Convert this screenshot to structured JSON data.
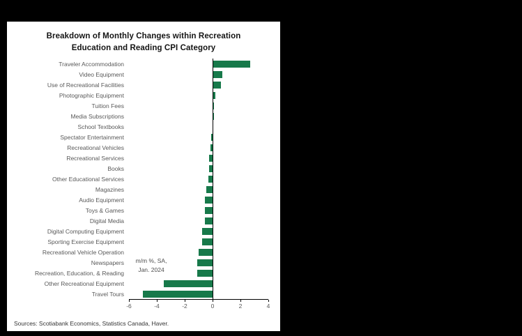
{
  "window": {
    "background": "#000000",
    "panel_background": "#ffffff"
  },
  "chart_data": {
    "type": "bar",
    "orientation": "horizontal",
    "title_line1": "Breakdown of Monthly Changes within Recreation",
    "title_line2": "Education and Reading CPI Category",
    "categories": [
      "Traveler Accommodation",
      "Video Equipment",
      "Use of Recreational Facilities",
      "Photographic Equipment",
      "Tuition Fees",
      "Media Subscriptions",
      "School Textbooks",
      "Spectator Entertainment",
      "Recreational Vehicles",
      "Recreational Services",
      "Books",
      "Other Educational Services",
      "Magazines",
      "Audio Equipment",
      "Toys & Games",
      "Digital Media",
      "Digital Computing Equipment",
      "Sporting Exercise Equipment",
      "Recreational Vehicle Operation",
      "Newspapers",
      "Recreation, Education, & Reading",
      "Other Recreational Equipment",
      "Travel Tours"
    ],
    "values": [
      2.7,
      0.7,
      0.6,
      0.2,
      0.1,
      0.08,
      0.03,
      -0.1,
      -0.15,
      -0.25,
      -0.25,
      -0.3,
      -0.45,
      -0.55,
      -0.55,
      -0.55,
      -0.75,
      -0.75,
      -1.0,
      -1.1,
      -1.1,
      -3.5,
      -5.0
    ],
    "xlim": [
      -6,
      4
    ],
    "xticks": [
      -6,
      -4,
      -2,
      0,
      2,
      4
    ],
    "grid": "zero-line-only",
    "legend_position": "none",
    "annotation_line1": "m/m %, SA,",
    "annotation_line2": "Jan. 2024",
    "bar_color": "#17794a"
  },
  "footer": {
    "sources": "Sources: Scotiabank Economics, Statistics Canada, Haver."
  }
}
